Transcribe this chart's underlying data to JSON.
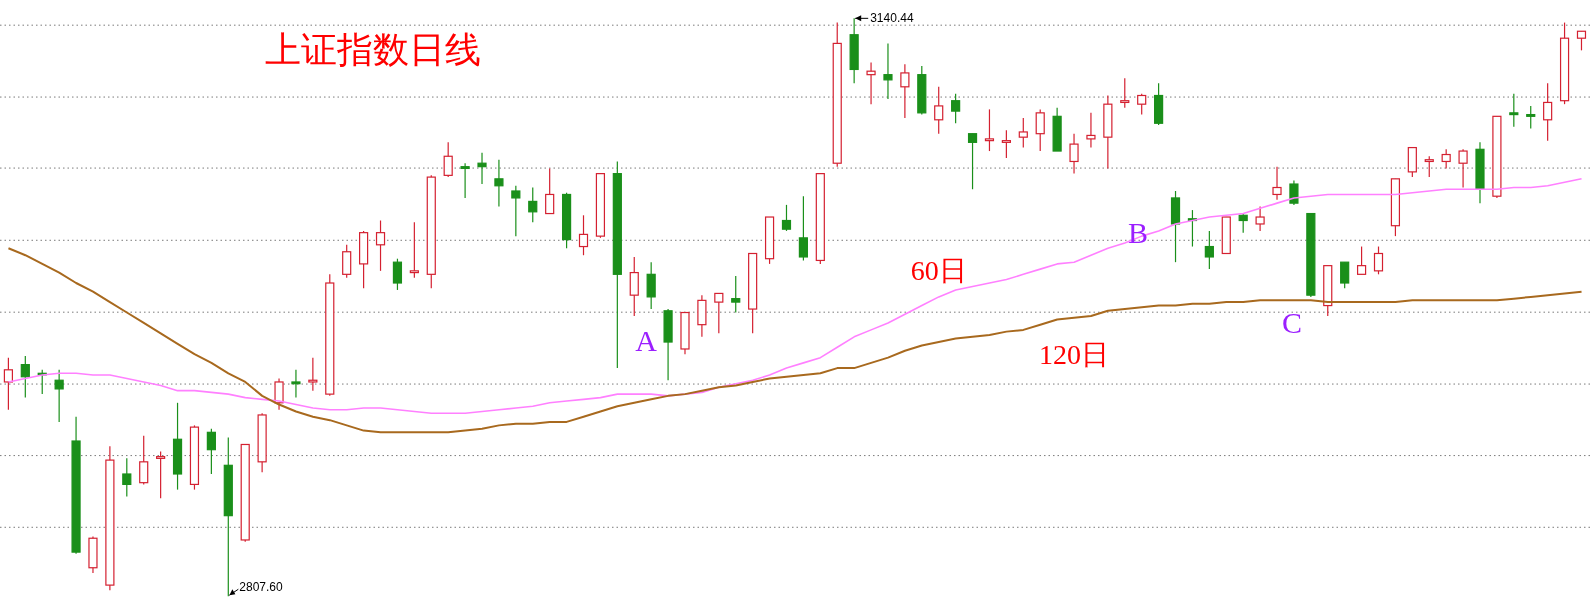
{
  "chart_data": {
    "type": "candlestick",
    "title": "上证指数日线",
    "categories": [
      null,
      null,
      null,
      null,
      null,
      null,
      null,
      null,
      null,
      null,
      null,
      null,
      null,
      null,
      null,
      null,
      null,
      null,
      null,
      null,
      null,
      null,
      null,
      null,
      null,
      null,
      null,
      null,
      null,
      null,
      null,
      null,
      null,
      null,
      null,
      null,
      null,
      null,
      null,
      null,
      null,
      null,
      null,
      null,
      null,
      null,
      null,
      null,
      null,
      null,
      null,
      null,
      null,
      null,
      null,
      null,
      null,
      null,
      null,
      null,
      null,
      null,
      null,
      null,
      null,
      null,
      null,
      null,
      null,
      null,
      null,
      null,
      null,
      null,
      null,
      null,
      null,
      null,
      null,
      null,
      null,
      null,
      null,
      null,
      null,
      null,
      null,
      null,
      null,
      null,
      null,
      null,
      null,
      null
    ],
    "ohlc": [
      [
        2931,
        2945,
        2915,
        2938
      ],
      [
        2941,
        2946,
        2922,
        2934
      ],
      [
        2936,
        2938,
        2924,
        2936
      ],
      [
        2932,
        2938,
        2908,
        2927
      ],
      [
        2897,
        2911,
        2832,
        2833
      ],
      [
        2824,
        2842,
        2821,
        2841
      ],
      [
        2814,
        2894,
        2811,
        2886
      ],
      [
        2878,
        2887,
        2865,
        2872
      ],
      [
        2873,
        2900,
        2872,
        2885
      ],
      [
        2887,
        2891,
        2864,
        2888
      ],
      [
        2898,
        2919,
        2869,
        2878
      ],
      [
        2872,
        2906,
        2869,
        2905
      ],
      [
        2902,
        2904,
        2878,
        2892
      ],
      [
        2883,
        2899,
        2807.6,
        2854
      ],
      [
        2840,
        2895,
        2839,
        2895
      ],
      [
        2885,
        2913,
        2879,
        2912
      ],
      [
        2919,
        2933,
        2915,
        2931
      ],
      [
        2931,
        2938,
        2922,
        2930
      ],
      [
        2931,
        2945,
        2926,
        2932
      ],
      [
        2924,
        2993,
        2923,
        2988
      ],
      [
        2993,
        3010,
        2991,
        3006
      ],
      [
        2999,
        3018,
        2985,
        3017
      ],
      [
        3010,
        3024,
        2995,
        3017
      ],
      [
        3000,
        3002,
        2984,
        2988
      ],
      [
        2994,
        3023,
        2991,
        2995
      ],
      [
        2993,
        3050,
        2985,
        3049
      ],
      [
        3050,
        3069,
        3049,
        3061
      ],
      [
        3055,
        3057,
        3037,
        3054
      ],
      [
        3057,
        3063,
        3045,
        3055
      ],
      [
        3048,
        3059,
        3032,
        3044
      ],
      [
        3041,
        3044,
        3015,
        3037
      ],
      [
        3035,
        3043,
        3023,
        3029
      ],
      [
        3028,
        3054,
        3028,
        3039
      ],
      [
        3039,
        3040,
        3008,
        3013
      ],
      [
        3009,
        3027,
        3004,
        3016
      ],
      [
        3015,
        3051,
        3014,
        3051
      ],
      [
        3051,
        3058,
        2939,
        2993
      ],
      [
        2981,
        3003,
        2969,
        2994
      ],
      [
        2993,
        3000,
        2973,
        2980
      ],
      [
        2972,
        2973,
        2932,
        2954
      ],
      [
        2950,
        2971,
        2947,
        2971
      ],
      [
        2964,
        2981,
        2957,
        2978
      ],
      [
        2977,
        2982,
        2959,
        2982
      ],
      [
        2979,
        2992,
        2971,
        2977
      ],
      [
        2973,
        3005,
        2959,
        3005
      ],
      [
        3002,
        3026,
        2999,
        3026
      ],
      [
        3024,
        3033,
        3018,
        3019
      ],
      [
        3014,
        3038,
        3001,
        3003
      ],
      [
        3001,
        3051,
        2999,
        3051
      ],
      [
        3057,
        3138,
        3055,
        3126
      ],
      [
        3131,
        3140.44,
        3103,
        3111
      ],
      [
        3108,
        3115,
        3091,
        3110
      ],
      [
        3108,
        3126,
        3094,
        3105
      ],
      [
        3101,
        3114,
        3083,
        3109
      ],
      [
        3108,
        3113,
        3085,
        3086
      ],
      [
        3082,
        3101,
        3074,
        3090
      ],
      [
        3093,
        3097,
        3080,
        3087
      ],
      [
        3074,
        3074,
        3042,
        3069
      ],
      [
        3070,
        3088,
        3064,
        3071
      ],
      [
        3069,
        3076,
        3060,
        3070
      ],
      [
        3072,
        3083,
        3066,
        3075
      ],
      [
        3074,
        3088,
        3064,
        3086
      ],
      [
        3084,
        3089,
        3064,
        3064
      ],
      [
        3058,
        3074,
        3051,
        3068
      ],
      [
        3071,
        3086,
        3066,
        3073
      ],
      [
        3072,
        3096,
        3054,
        3091
      ],
      [
        3092,
        3106,
        3089,
        3093
      ],
      [
        3091,
        3097,
        3085,
        3096
      ],
      [
        3096,
        3103,
        3079,
        3080
      ],
      [
        3037,
        3041,
        3000,
        3022
      ],
      [
        3025,
        3030,
        3009,
        3024
      ],
      [
        3009,
        3018,
        2996,
        3003
      ],
      [
        3005,
        3026,
        3005,
        3026
      ],
      [
        3027,
        3028,
        3017,
        3024
      ],
      [
        3022,
        3032,
        3018,
        3026
      ],
      [
        3039,
        3055,
        3036,
        3043
      ],
      [
        3045,
        3047,
        3033,
        3034
      ],
      [
        3028,
        3028,
        2980,
        2981
      ],
      [
        2975,
        2998,
        2969,
        2998
      ],
      [
        3000,
        3000,
        2985,
        2988
      ],
      [
        2993,
        3009,
        2993,
        2998
      ],
      [
        2995,
        3009,
        2993,
        3005
      ],
      [
        3021,
        3048,
        3015,
        3048
      ],
      [
        3052,
        3066,
        3049,
        3066
      ],
      [
        3058,
        3061,
        3049,
        3059
      ],
      [
        3058,
        3065,
        3054,
        3062
      ],
      [
        3057,
        3065,
        3043,
        3064
      ],
      [
        3065,
        3069,
        3034,
        3042
      ],
      [
        3038,
        3084,
        3037,
        3084
      ],
      [
        3086,
        3097,
        3078,
        3085
      ],
      [
        3085,
        3090,
        3077,
        3084
      ],
      [
        3082,
        3103,
        3070,
        3092
      ],
      [
        3093,
        3138,
        3091,
        3129
      ],
      [
        3129,
        3133,
        3122,
        3133
      ]
    ],
    "colors": [
      "#d42030",
      "#1a8f1a",
      "#1a8f1a",
      "#1a8f1a",
      "#1a8f1a",
      "#d42030",
      "#d42030",
      "#1a8f1a",
      "#d42030",
      "#d42030",
      "#1a8f1a",
      "#d42030",
      "#1a8f1a",
      "#1a8f1a",
      "#d42030",
      "#d42030",
      "#d42030",
      "#1a8f1a",
      "#d42030",
      "#d42030",
      "#d42030",
      "#d42030",
      "#d42030",
      "#1a8f1a",
      "#d42030",
      "#d42030",
      "#d42030",
      "#1a8f1a",
      "#1a8f1a",
      "#1a8f1a",
      "#1a8f1a",
      "#1a8f1a",
      "#d42030",
      "#1a8f1a",
      "#d42030",
      "#d42030",
      "#1a8f1a",
      "#d42030",
      "#1a8f1a",
      "#1a8f1a",
      "#d42030",
      "#d42030",
      "#d42030",
      "#1a8f1a",
      "#d42030",
      "#d42030",
      "#1a8f1a",
      "#1a8f1a",
      "#d42030",
      "#d42030",
      "#1a8f1a",
      "#d42030",
      "#1a8f1a",
      "#d42030",
      "#1a8f1a",
      "#d42030",
      "#1a8f1a",
      "#1a8f1a",
      "#d42030",
      "#d42030",
      "#d42030",
      "#d42030",
      "#1a8f1a",
      "#d42030",
      "#d42030",
      "#d42030",
      "#d42030",
      "#d42030",
      "#1a8f1a",
      "#1a8f1a",
      "#1a8f1a",
      "#1a8f1a",
      "#d42030",
      "#1a8f1a",
      "#d42030",
      "#d42030",
      "#1a8f1a",
      "#1a8f1a",
      "#d42030",
      "#1a8f1a",
      "#d42030",
      "#d42030",
      "#d42030",
      "#d42030",
      "#d42030",
      "#d42030",
      "#d42030",
      "#1a8f1a",
      "#d42030",
      "#1a8f1a",
      "#1a8f1a",
      "#d42030",
      "#d42030",
      "#d42030"
    ],
    "series": [
      {
        "type": "line",
        "name": "60日",
        "color": "#ff80ff",
        "values": [
          2931,
          2933,
          2935,
          2936,
          2936,
          2935,
          2935,
          2933,
          2931,
          2929,
          2926,
          2926,
          2925,
          2924,
          2922,
          2921,
          2920,
          2918,
          2916,
          2915,
          2915,
          2916,
          2916,
          2915,
          2914,
          2913,
          2913,
          2913,
          2914,
          2915,
          2916,
          2917,
          2919,
          2920,
          2921,
          2922,
          2924,
          2924,
          2924,
          2923,
          2924,
          2925,
          2928,
          2930,
          2932,
          2935,
          2939,
          2942,
          2945,
          2951,
          2957,
          2961,
          2965,
          2970,
          2975,
          2980,
          2984,
          2986,
          2988,
          2990,
          2993,
          2996,
          2999,
          3000,
          3004,
          3008,
          3011,
          3015,
          3018,
          3022,
          3024,
          3026,
          3027,
          3028,
          3031,
          3034,
          3037,
          3038,
          3039,
          3039,
          3039,
          3039,
          3039,
          3040,
          3041,
          3042,
          3042,
          3042,
          3042,
          3043,
          3043,
          3044,
          3046,
          3048
        ]
      },
      {
        "type": "line",
        "name": "120日",
        "color": "#a8691e",
        "values": [
          3008,
          3004,
          2999,
          2994,
          2988,
          2983,
          2977,
          2971,
          2965,
          2959,
          2953,
          2947,
          2942,
          2936,
          2931,
          2923,
          2918,
          2914,
          2911,
          2909,
          2906,
          2903,
          2902,
          2902,
          2902,
          2902,
          2902,
          2903,
          2904,
          2906,
          2907,
          2907,
          2908,
          2908,
          2911,
          2914,
          2917,
          2919,
          2921,
          2923,
          2924,
          2926,
          2928,
          2929,
          2931,
          2933,
          2934,
          2935,
          2936,
          2939,
          2939,
          2942,
          2945,
          2949,
          2952,
          2954,
          2956,
          2957,
          2958,
          2960,
          2961,
          2964,
          2967,
          2968,
          2969,
          2972,
          2973,
          2974,
          2975,
          2975,
          2976,
          2976,
          2977,
          2977,
          2978,
          2978,
          2978,
          2978,
          2977,
          2977,
          2977,
          2977,
          2977,
          2978,
          2978,
          2978,
          2978,
          2978,
          2978,
          2979,
          2980,
          2981,
          2982,
          2983
        ]
      }
    ],
    "ylim": [
      2806,
      3151
    ],
    "yticks": [
      {
        "value": 3136.5,
        "label": null
      },
      {
        "value": 3095.1,
        "label": null
      },
      {
        "value": 3054.2,
        "label": null
      },
      {
        "value": 3012.6,
        "label": null
      },
      {
        "value": 2971.2,
        "label": null
      },
      {
        "value": 2929.8,
        "label": null
      },
      {
        "value": 2888.6,
        "label": null
      },
      {
        "value": 2847.3,
        "label": null
      }
    ],
    "grid": "y",
    "tick_labels": false,
    "annotations": [
      "3140.44",
      "2807.60",
      "A",
      "B",
      "C"
    ]
  }
}
